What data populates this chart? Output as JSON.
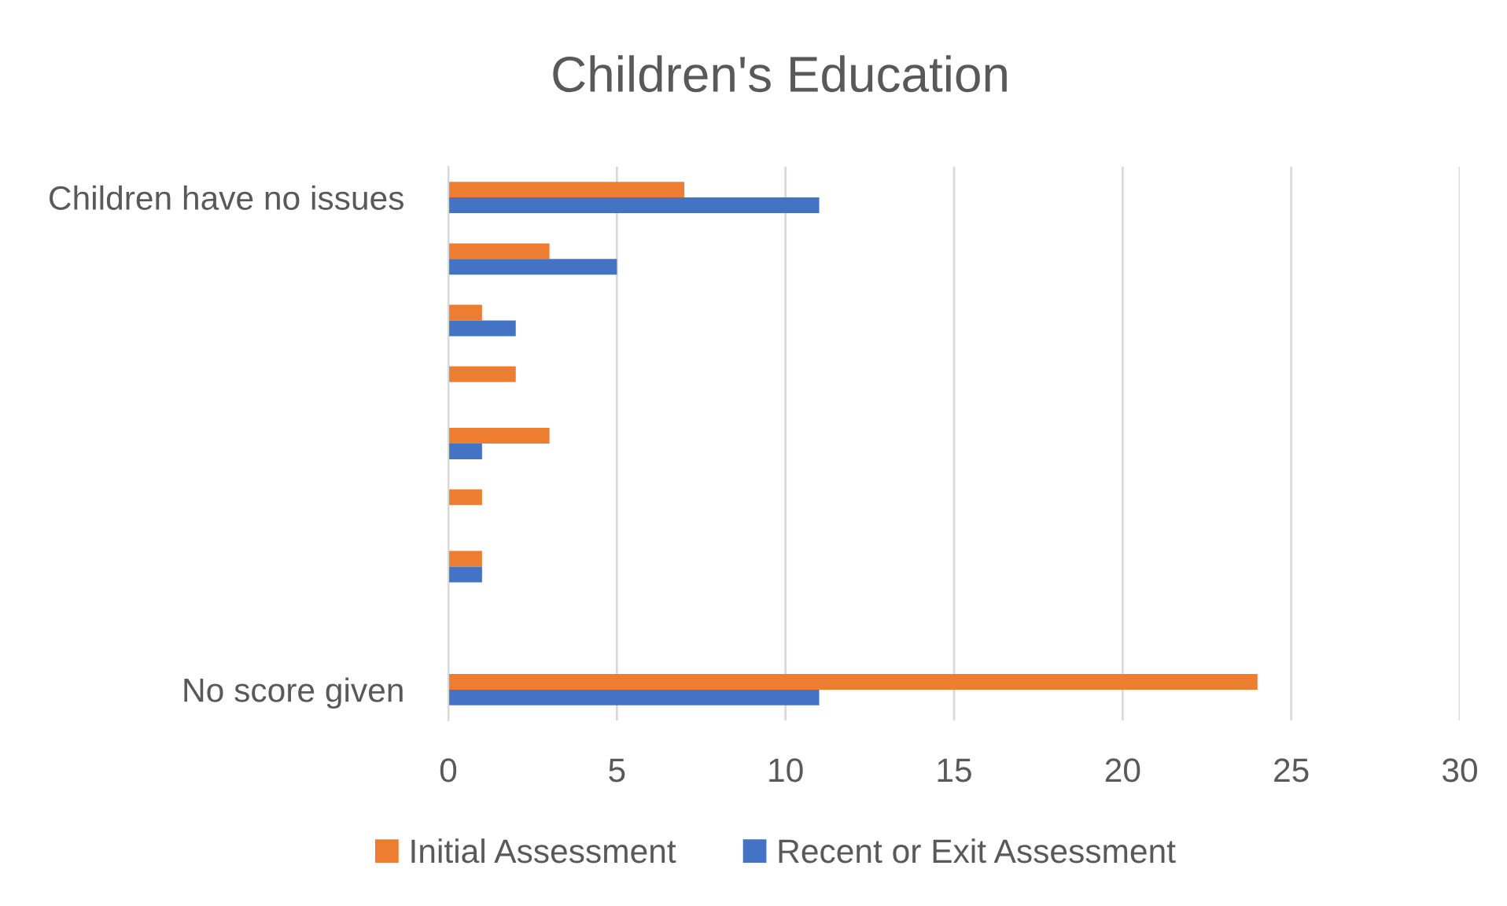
{
  "chart_data": {
    "type": "bar",
    "orientation": "horizontal",
    "title": "Children's Education",
    "categories": [
      "Children have no issues",
      null,
      null,
      null,
      null,
      null,
      null,
      null,
      "No score given"
    ],
    "series": [
      {
        "name": "Initial Assessment",
        "color": "#ed7d31",
        "values": [
          7,
          3,
          1,
          2,
          3,
          1,
          1,
          0,
          24
        ]
      },
      {
        "name": "Recent or Exit Assessment",
        "color": "#4472c4",
        "values": [
          11,
          5,
          2,
          0,
          1,
          0,
          1,
          0,
          11
        ]
      }
    ],
    "xlim": [
      0,
      30
    ],
    "xticks": [
      0,
      5,
      10,
      15,
      20,
      25,
      30
    ],
    "grid": "x",
    "legend": "bottom"
  }
}
